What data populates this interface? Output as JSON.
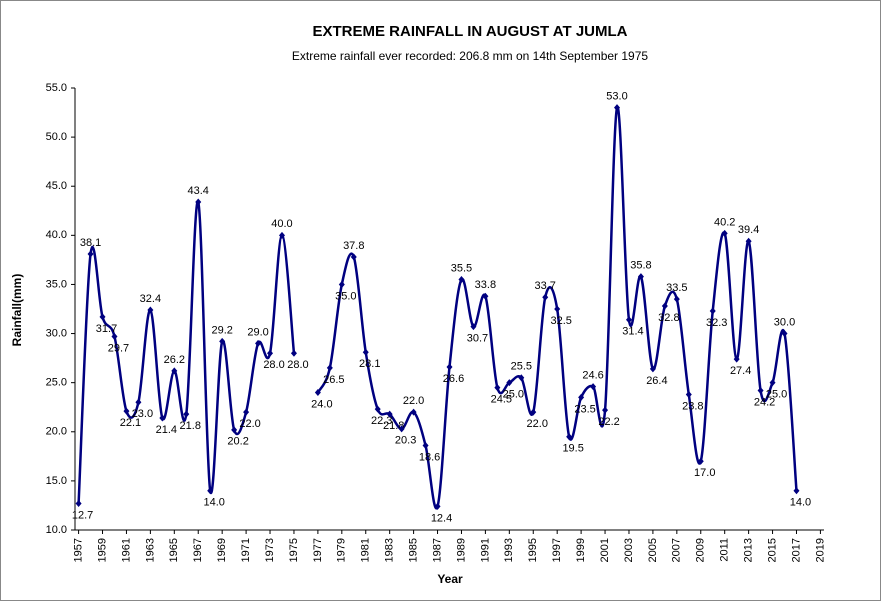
{
  "chart_data": {
    "type": "line",
    "title": "EXTREME RAINFALL IN AUGUST AT JUMLA",
    "subtitle": "Extreme rainfall ever recorded: 206.8 mm on 14th September 1975",
    "x_label": "Year",
    "y_label": "Rainfall(mm)",
    "x": [
      1957,
      1958,
      1959,
      1960,
      1961,
      1962,
      1963,
      1964,
      1965,
      1966,
      1967,
      1968,
      1969,
      1970,
      1971,
      1972,
      1973,
      1974,
      1975,
      1976,
      1977,
      1978,
      1979,
      1980,
      1981,
      1982,
      1983,
      1984,
      1985,
      1986,
      1987,
      1988,
      1989,
      1990,
      1991,
      1992,
      1993,
      1994,
      1995,
      1996,
      1997,
      1998,
      1999,
      2000,
      2001,
      2002,
      2003,
      2004,
      2005,
      2006,
      2007,
      2008,
      2009,
      2010,
      2011,
      2012,
      2013,
      2014,
      2015,
      2016,
      2017
    ],
    "series": [
      {
        "name": "Rainfall",
        "color": "#000080",
        "values": [
          12.7,
          38.1,
          31.7,
          29.7,
          22.1,
          23.0,
          32.4,
          21.4,
          26.2,
          21.8,
          43.4,
          14.0,
          29.2,
          20.2,
          22.0,
          29.0,
          28.0,
          40.0,
          28.0,
          null,
          24.0,
          26.5,
          35.0,
          37.8,
          28.1,
          22.3,
          21.8,
          20.3,
          22.0,
          18.6,
          12.4,
          26.6,
          35.5,
          30.7,
          33.8,
          24.5,
          25.0,
          25.5,
          22.0,
          33.7,
          32.5,
          19.5,
          23.5,
          24.6,
          22.2,
          53.0,
          31.4,
          35.8,
          26.4,
          32.8,
          33.5,
          23.8,
          17.0,
          32.3,
          40.2,
          27.4,
          39.4,
          24.2,
          25.0,
          30.0,
          14.0
        ],
        "value_labels": [
          "12.7",
          "38.1",
          "31.7",
          "29.7",
          "22.1",
          "23.0",
          "32.4",
          "21.4",
          "26.2",
          "21.8",
          "43.4",
          "14.0",
          "29.2",
          "20.2",
          "22.0",
          "29.0",
          "28.0",
          "40.0",
          "28.0",
          null,
          "24.0",
          "26.5",
          "35.0",
          "37.8",
          "28.1",
          "22.3",
          "21.8",
          "20.3",
          "22.0",
          "18.6",
          "12.4",
          "26.6",
          "35.5",
          "30.7",
          "33.8",
          "24.5",
          "25.0",
          "25.5",
          "22.0",
          "33.7",
          "32.5",
          "19.5",
          "23.5",
          "24.6",
          "22.2",
          "53.0",
          "31.4",
          "35.8",
          "26.4",
          "32.8",
          "33.5",
          "23.8",
          "17.0",
          "32.3",
          "40.2",
          "27.4",
          "39.4",
          "24.2",
          "25.0",
          "30.0",
          "14.0"
        ]
      }
    ],
    "xlim": [
      1956.7,
      2019.3
    ],
    "xticks": [
      1957,
      1959,
      1961,
      1963,
      1965,
      1967,
      1969,
      1971,
      1973,
      1975,
      1977,
      1979,
      1981,
      1983,
      1985,
      1987,
      1989,
      1991,
      1993,
      1995,
      1997,
      1999,
      2001,
      2003,
      2005,
      2007,
      2009,
      2011,
      2013,
      2015,
      2017,
      2019
    ],
    "ylim": [
      10,
      55
    ],
    "yticks": [
      {
        "value": 10,
        "label": "10.0"
      },
      {
        "value": 15,
        "label": "15.0"
      },
      {
        "value": 20,
        "label": "20.0"
      },
      {
        "value": 25,
        "label": "25.0"
      },
      {
        "value": 30,
        "label": "30.0"
      },
      {
        "value": 35,
        "label": "35.0"
      },
      {
        "value": 40,
        "label": "40.0"
      },
      {
        "value": 45,
        "label": "45.0"
      },
      {
        "value": 50,
        "label": "50.0"
      },
      {
        "value": 55,
        "label": "55.0"
      }
    ],
    "grid": false
  }
}
